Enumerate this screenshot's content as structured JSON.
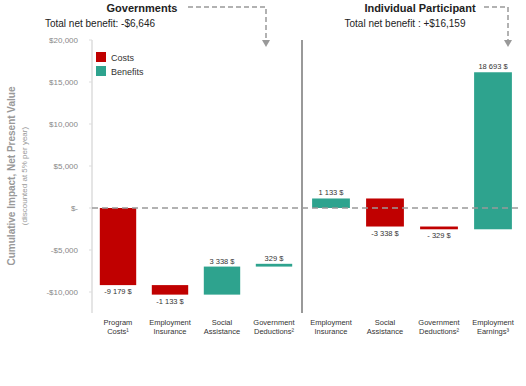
{
  "chart_data": [
    {
      "type": "waterfall",
      "title": "Governments",
      "subtitle": "Total net benefit: -$6,646",
      "ylabel": "Cumulative Impact, Net Present Value",
      "ylabel_note": "(discounted at 5% per year)",
      "categories": [
        "Program Costs¹",
        "Employment Insurance",
        "Social Assistance",
        "Government Deductions²"
      ],
      "series": [
        {
          "name": "Costs",
          "color": "#c00000",
          "values": [
            -9179,
            -1133,
            null,
            null
          ],
          "value_labels": [
            "-9 179 $",
            "-1 133 $",
            null,
            null
          ]
        },
        {
          "name": "Benefits",
          "color": "#2ea38e",
          "values": [
            null,
            null,
            3338,
            329
          ],
          "value_labels": [
            null,
            null,
            "3 338 $",
            "329 $"
          ]
        }
      ],
      "ylim": [
        -12500,
        20000
      ],
      "yticks": [
        {
          "value": 20000,
          "label": "$20,000"
        },
        {
          "value": 15000,
          "label": "$15,000"
        },
        {
          "value": 10000,
          "label": "$10,000"
        },
        {
          "value": 5000,
          "label": "$5,000"
        },
        {
          "value": 0,
          "label": "$-"
        },
        {
          "value": -5000,
          "label": "-$5,000"
        },
        {
          "value": -10000,
          "label": "-$10,000"
        }
      ],
      "legend": "upper left",
      "data_labels": true,
      "grid": false
    },
    {
      "type": "waterfall",
      "title": "Individual Participant",
      "subtitle": "Total net benefit : +$16,159",
      "categories": [
        "Employment Insurance",
        "Social Assistance",
        "Government Deductions²",
        "Employment Earnings³"
      ],
      "values": [
        1133,
        -3338,
        -329,
        18693
      ],
      "value_labels": [
        "1 133 $",
        "-3 338 $",
        "- 329 $",
        "18 693 $"
      ],
      "colors": [
        "#2ea38e",
        "#c00000",
        "#c00000",
        "#2ea38e"
      ],
      "ylim": [
        -12500,
        20000
      ],
      "tick_labels": false,
      "data_labels": true,
      "grid": false
    }
  ]
}
